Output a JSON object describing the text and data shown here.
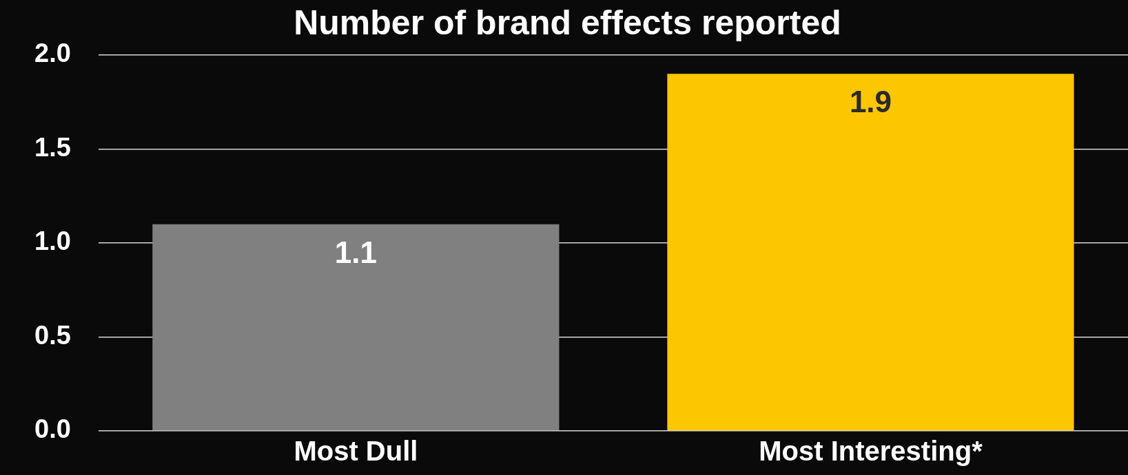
{
  "chart_data": {
    "type": "bar",
    "title": "Number of brand effects reported",
    "categories": [
      "Most Dull",
      "Most Interesting*"
    ],
    "values": [
      1.1,
      1.9
    ],
    "colors": [
      "#808080",
      "#fcc600"
    ],
    "ylim": [
      0,
      2
    ],
    "yticks": [
      {
        "value": 0,
        "label": "0.0"
      },
      {
        "value": 0.5,
        "label": "0.5"
      },
      {
        "value": 1,
        "label": "1.0"
      },
      {
        "value": 1.5,
        "label": "1.5"
      },
      {
        "value": 2,
        "label": "2.0"
      }
    ],
    "grid": "y",
    "legend": false,
    "data_labels": true
  }
}
